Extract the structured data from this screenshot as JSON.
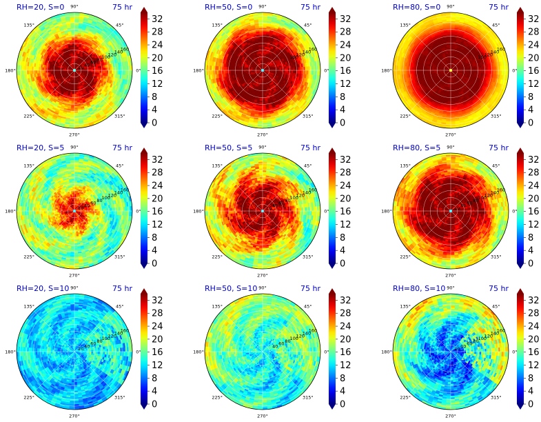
{
  "figure": {
    "colormap": "jet",
    "time_label": "75 hr"
  },
  "chart_data": [
    {
      "type": "heatmap",
      "projection": "polar",
      "title_left": "RH=20, S=0",
      "title_right": "75 hr",
      "angle_ticks": [
        "0°",
        "45°",
        "90°",
        "135°",
        "180°",
        "225°",
        "270°",
        "315°"
      ],
      "radial_ticks": [
        20,
        40,
        60,
        80,
        100,
        120,
        140,
        160
      ],
      "rlim": [
        0,
        170
      ],
      "colorbar": {
        "ticks": [
          0,
          4,
          8,
          12,
          16,
          20,
          24,
          28,
          32
        ],
        "range": [
          0,
          34
        ],
        "extend": "both"
      },
      "field": {
        "eye_radius": 6,
        "eye_value": 14,
        "core_radius": 60,
        "core_value": 34,
        "outer_radius": 125,
        "outer_value": 19,
        "noise": 0.35,
        "asymmetry": 0.25
      }
    },
    {
      "type": "heatmap",
      "projection": "polar",
      "title_left": "RH=50, S=0",
      "title_right": "75 hr",
      "angle_ticks": [
        "0°",
        "45°",
        "90°",
        "135°",
        "180°",
        "225°",
        "270°",
        "315°"
      ],
      "radial_ticks": [
        100,
        120,
        140,
        160
      ],
      "rlim": [
        0,
        170
      ],
      "colorbar": {
        "ticks": [
          0,
          4,
          8,
          12,
          16,
          20,
          24,
          28,
          32
        ],
        "range": [
          0,
          34
        ],
        "extend": "both"
      },
      "field": {
        "eye_radius": 6,
        "eye_value": 12,
        "core_radius": 95,
        "core_value": 34,
        "outer_radius": 150,
        "outer_value": 20,
        "noise": 0.3,
        "asymmetry": 0.15
      }
    },
    {
      "type": "heatmap",
      "projection": "polar",
      "title_left": "RH=80, S=0",
      "title_right": "75 hr",
      "angle_ticks": [
        "0°",
        "45°",
        "90°",
        "135°",
        "180°",
        "225°",
        "270°",
        "315°"
      ],
      "radial_ticks": [
        100,
        120,
        140,
        160
      ],
      "rlim": [
        0,
        170
      ],
      "colorbar": {
        "ticks": [
          0,
          4,
          8,
          12,
          16,
          20,
          24,
          28,
          32
        ],
        "range": [
          0,
          34
        ],
        "extend": "both"
      },
      "field": {
        "eye_radius": 4,
        "eye_value": 22,
        "core_radius": 95,
        "core_value": 34,
        "outer_radius": 150,
        "outer_value": 22,
        "noise": 0.1,
        "asymmetry": 0.05
      }
    },
    {
      "type": "heatmap",
      "projection": "polar",
      "title_left": "RH=20, S=5",
      "title_right": "75 hr",
      "angle_ticks": [
        "0°",
        "45°",
        "90°",
        "135°",
        "180°",
        "225°",
        "270°",
        "315°"
      ],
      "radial_ticks": [
        20,
        40,
        60,
        80,
        100,
        120,
        140,
        160
      ],
      "rlim": [
        0,
        170
      ],
      "colorbar": {
        "ticks": [
          0,
          4,
          8,
          12,
          16,
          20,
          24,
          28,
          32
        ],
        "range": [
          0,
          34
        ],
        "extend": "both"
      },
      "field": {
        "eye_radius": 6,
        "eye_value": 12,
        "core_radius": 25,
        "core_value": 30,
        "outer_radius": 90,
        "outer_value": 17,
        "noise": 0.45,
        "asymmetry": 0.2
      }
    },
    {
      "type": "heatmap",
      "projection": "polar",
      "title_left": "RH=50, S=5",
      "title_right": "75 hr",
      "angle_ticks": [
        "0°",
        "45°",
        "90°",
        "135°",
        "180°",
        "225°",
        "270°",
        "315°"
      ],
      "radial_ticks": [
        20,
        40,
        60,
        80,
        100,
        120,
        140,
        160
      ],
      "rlim": [
        0,
        170
      ],
      "colorbar": {
        "ticks": [
          0,
          4,
          8,
          12,
          16,
          20,
          24,
          28,
          32
        ],
        "range": [
          0,
          34
        ],
        "extend": "both"
      },
      "field": {
        "eye_radius": 6,
        "eye_value": 12,
        "core_radius": 55,
        "core_value": 33,
        "outer_radius": 140,
        "outer_value": 19,
        "noise": 0.45,
        "asymmetry": 0.25
      }
    },
    {
      "type": "heatmap",
      "projection": "polar",
      "title_left": "RH=80, S=5",
      "title_right": "75 hr",
      "angle_ticks": [
        "0°",
        "45°",
        "90°",
        "135°",
        "180°",
        "225°",
        "270°",
        "315°"
      ],
      "radial_ticks": [
        20,
        40,
        60,
        80,
        100,
        120,
        140,
        160
      ],
      "rlim": [
        0,
        170
      ],
      "colorbar": {
        "ticks": [
          0,
          4,
          8,
          12,
          16,
          20,
          24,
          28,
          32
        ],
        "range": [
          0,
          34
        ],
        "extend": "both"
      },
      "field": {
        "eye_radius": 6,
        "eye_value": 12,
        "core_radius": 85,
        "core_value": 34,
        "outer_radius": 150,
        "outer_value": 21,
        "noise": 0.35,
        "asymmetry": 0.15
      }
    },
    {
      "type": "heatmap",
      "projection": "polar",
      "title_left": "RH=20, S=10",
      "title_right": "75 hr",
      "angle_ticks": [
        "0°",
        "45°",
        "90°",
        "135°",
        "180°",
        "225°",
        "270°",
        "315°"
      ],
      "radial_ticks": [
        20,
        40,
        60,
        80,
        100,
        120,
        140,
        160
      ],
      "rlim": [
        0,
        170
      ],
      "colorbar": {
        "ticks": [
          0,
          4,
          8,
          12,
          16,
          20,
          24,
          28,
          32
        ],
        "range": [
          0,
          34
        ],
        "extend": "both"
      },
      "field": {
        "eye_radius": 0,
        "eye_value": 10,
        "core_radius": 20,
        "core_value": 11,
        "outer_radius": 150,
        "outer_value": 11,
        "noise": 0.35,
        "asymmetry": 0.15,
        "east_band": 22
      }
    },
    {
      "type": "heatmap",
      "projection": "polar",
      "title_left": "RH=50, S=10",
      "title_right": "75 hr",
      "angle_ticks": [
        "0°",
        "45°",
        "90°",
        "135°",
        "180°",
        "225°",
        "270°",
        "315°"
      ],
      "radial_ticks": [
        40,
        60,
        80,
        100,
        120,
        140,
        160
      ],
      "rlim": [
        0,
        170
      ],
      "colorbar": {
        "ticks": [
          0,
          4,
          8,
          12,
          16,
          20,
          24,
          28,
          32
        ],
        "range": [
          0,
          34
        ],
        "extend": "both"
      },
      "field": {
        "eye_radius": 0,
        "eye_value": 12,
        "core_radius": 40,
        "core_value": 13,
        "outer_radius": 150,
        "outer_value": 16,
        "noise": 0.4,
        "asymmetry": 0.35,
        "east_band": 24
      }
    },
    {
      "type": "heatmap",
      "projection": "polar",
      "title_left": "RH=80, S=10",
      "title_right": "75 hr",
      "angle_ticks": [
        "0°",
        "45°",
        "90°",
        "135°",
        "180°",
        "225°",
        "270°",
        "315°"
      ],
      "radial_ticks": [
        20,
        40,
        60,
        80,
        100,
        120,
        140,
        160
      ],
      "rlim": [
        0,
        170
      ],
      "colorbar": {
        "ticks": [
          0,
          4,
          8,
          12,
          16,
          20,
          24,
          28,
          32
        ],
        "range": [
          0,
          34
        ],
        "extend": "both"
      },
      "field": {
        "eye_radius": 0,
        "eye_value": 9,
        "core_radius": 60,
        "core_value": 8,
        "outer_radius": 150,
        "outer_value": 17,
        "noise": 0.45,
        "asymmetry": 0.4,
        "east_band": 30
      }
    }
  ]
}
